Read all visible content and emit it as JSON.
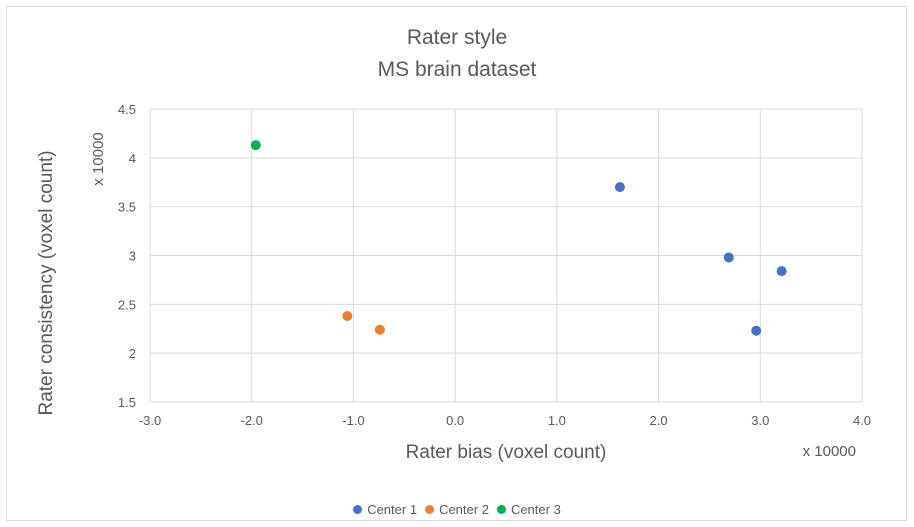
{
  "chart_data": {
    "type": "scatter",
    "title_lines": [
      "Rater style",
      "MS brain dataset"
    ],
    "xlabel": "Rater bias (voxel count)",
    "ylabel": "Rater consistency (voxel count)",
    "x_multiplier_label": "x 10000",
    "y_multiplier_label": "x 10000",
    "xlim": [
      -3.0,
      4.0
    ],
    "ylim": [
      1.5,
      4.5
    ],
    "x_ticks": [
      -3.0,
      -2.0,
      -1.0,
      0.0,
      1.0,
      2.0,
      3.0,
      4.0
    ],
    "x_tick_labels": [
      "-3.0",
      "-2.0",
      "-1.0",
      "0.0",
      "1.0",
      "2.0",
      "3.0",
      "4.0"
    ],
    "y_ticks": [
      1.5,
      2,
      2.5,
      3,
      3.5,
      4,
      4.5
    ],
    "y_tick_labels": [
      "1.5",
      "2",
      "2.5",
      "3",
      "3.5",
      "4",
      "4.5"
    ],
    "grid": true,
    "legend_position": "bottom",
    "series": [
      {
        "name": "Center 1",
        "color": "#4472c4",
        "points": [
          [
            1.62,
            3.7
          ],
          [
            2.69,
            2.98
          ],
          [
            3.21,
            2.84
          ],
          [
            2.96,
            2.23
          ]
        ]
      },
      {
        "name": "Center 2",
        "color": "#ed7d31",
        "points": [
          [
            -1.06,
            2.38
          ],
          [
            -0.74,
            2.24
          ]
        ]
      },
      {
        "name": "Center 3",
        "color": "#00b050",
        "points": [
          [
            -1.96,
            4.13
          ]
        ]
      }
    ]
  }
}
